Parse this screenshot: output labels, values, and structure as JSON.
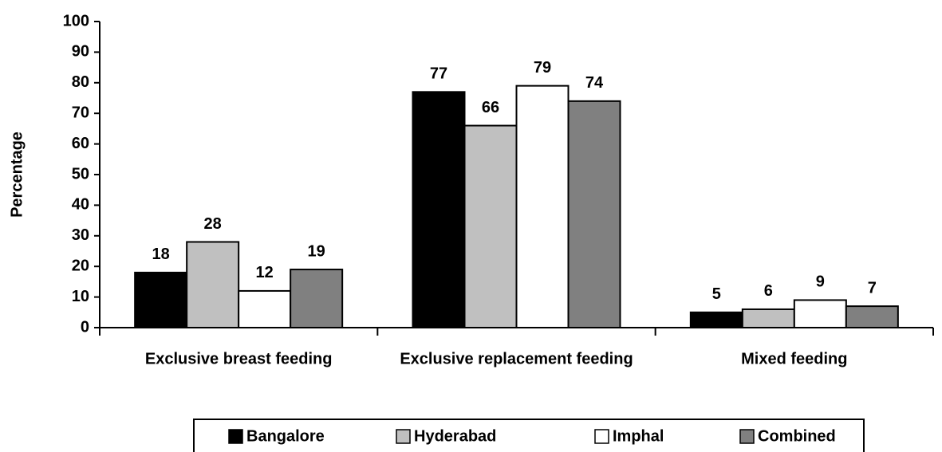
{
  "chart_data": {
    "type": "bar",
    "y_label": "Percentage",
    "categories": [
      "Exclusive breast feeding",
      "Exclusive replacement feeding",
      "Mixed feeding"
    ],
    "series": [
      {
        "name": "Bangalore",
        "color": "#000000",
        "values": [
          18,
          77,
          5
        ]
      },
      {
        "name": "Hyderabad",
        "color": "#c0c0c0",
        "values": [
          28,
          66,
          6
        ]
      },
      {
        "name": "Imphal",
        "color": "#ffffff",
        "values": [
          12,
          79,
          9
        ]
      },
      {
        "name": "Combined",
        "color": "#808080",
        "values": [
          19,
          74,
          7
        ]
      }
    ],
    "ylim": [
      0,
      100
    ],
    "yticks": [
      0,
      10,
      20,
      30,
      40,
      50,
      60,
      70,
      80,
      90,
      100
    ],
    "legend": "bottom"
  }
}
